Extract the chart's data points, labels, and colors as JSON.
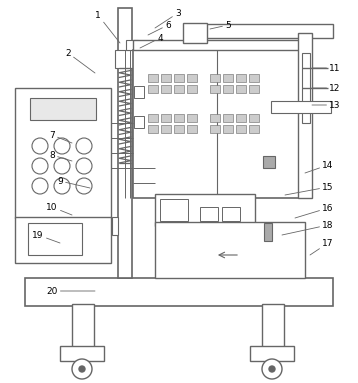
{
  "line_color": "#666666",
  "lw": 1.0,
  "fs": 6.5,
  "fig_w": 3.58,
  "fig_h": 3.83,
  "dpi": 100
}
